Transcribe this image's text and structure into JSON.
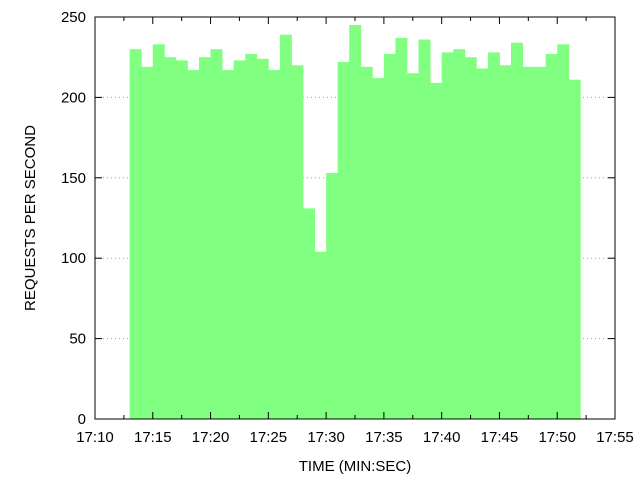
{
  "chart_data": {
    "type": "bar",
    "title": "",
    "xlabel": "TIME (MIN:SEC)",
    "ylabel": "REQUESTS PER SECOND",
    "xlim": [
      610,
      655
    ],
    "ylim": [
      0,
      250
    ],
    "grid": "y-dotted",
    "colors": {
      "bar": "#80ff80",
      "axis": "#000000",
      "grid": "#a0a0a0"
    },
    "x_ticks": [
      {
        "value": 610,
        "label": "17:10"
      },
      {
        "value": 615,
        "label": "17:15"
      },
      {
        "value": 620,
        "label": "17:20"
      },
      {
        "value": 625,
        "label": "17:25"
      },
      {
        "value": 630,
        "label": "17:30"
      },
      {
        "value": 635,
        "label": "17:35"
      },
      {
        "value": 640,
        "label": "17:40"
      },
      {
        "value": 645,
        "label": "17:45"
      },
      {
        "value": 650,
        "label": "17:50"
      },
      {
        "value": 655,
        "label": "17:55"
      }
    ],
    "y_ticks": [
      {
        "value": 0,
        "label": "0"
      },
      {
        "value": 50,
        "label": "50"
      },
      {
        "value": 100,
        "label": "100"
      },
      {
        "value": 150,
        "label": "150"
      },
      {
        "value": 200,
        "label": "200"
      },
      {
        "value": 250,
        "label": "250"
      }
    ],
    "bin_width": 1,
    "x": [
      613.5,
      614.5,
      615.5,
      616.5,
      617.5,
      618.5,
      619.5,
      620.5,
      621.5,
      622.5,
      623.5,
      624.5,
      625.5,
      626.5,
      627.5,
      628.5,
      629.5,
      630.5,
      631.5,
      632.5,
      633.5,
      634.5,
      635.5,
      636.5,
      637.5,
      638.5,
      639.5,
      640.5,
      641.5,
      642.5,
      643.5,
      644.5,
      645.5,
      646.5,
      647.5,
      648.5,
      649.5,
      650.5,
      651.5
    ],
    "values": [
      230,
      219,
      233,
      225,
      223,
      217,
      225,
      230,
      217,
      223,
      227,
      224,
      217,
      239,
      220,
      131,
      104,
      153,
      222,
      245,
      219,
      212,
      227,
      237,
      215,
      236,
      209,
      228,
      230,
      225,
      218,
      228,
      220,
      234,
      219,
      219,
      227,
      233,
      211
    ]
  }
}
